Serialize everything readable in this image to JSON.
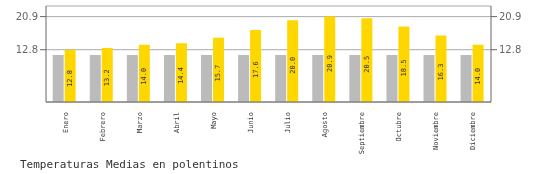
{
  "chart_data": {
    "type": "bar",
    "title": "Temperaturas Medias en polentinos",
    "categories": [
      "Enero",
      "Febrero",
      "Marzo",
      "Abril",
      "Mayo",
      "Junio",
      "Julio",
      "Agosto",
      "Septiembre",
      "Octubre",
      "Noviembre",
      "Diciembre"
    ],
    "series": [
      {
        "color": "#BBBBBB",
        "values": [
          11.5,
          11.5,
          11.5,
          11.5,
          11.5,
          11.5,
          11.5,
          11.5,
          11.5,
          11.5,
          11.5,
          11.5
        ]
      },
      {
        "color": "#FFD700",
        "values": [
          12.8,
          13.2,
          14.0,
          14.4,
          15.7,
          17.6,
          20.0,
          20.9,
          20.5,
          18.5,
          16.3,
          14.0
        ],
        "value_labels": [
          "12.8",
          "13.2",
          "14.0",
          "14.4",
          "15.7",
          "17.6",
          "20.0",
          "20.9",
          "20.5",
          "18.5",
          "16.3",
          "14.0"
        ],
        "data_labels": true
      }
    ],
    "ylim": [
      0,
      23.5
    ],
    "yticks": [
      12.8,
      20.9
    ],
    "y2lim": [
      0,
      23.5
    ],
    "y2ticks": [
      12.8,
      20.9
    ],
    "grid": true
  }
}
